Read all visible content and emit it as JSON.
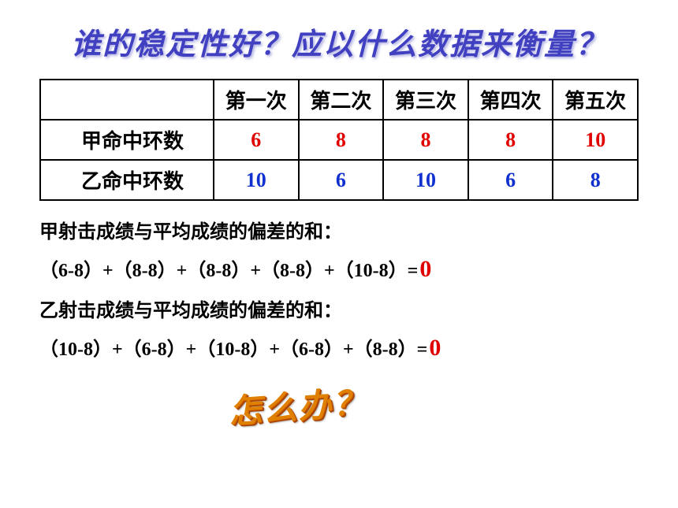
{
  "title": "谁的稳定性好？应以什么数据来衡量？",
  "table": {
    "headers": [
      "",
      "第一次",
      "第二次",
      "第三次",
      "第四次",
      "第五次"
    ],
    "rows": [
      {
        "label": "甲命中环数",
        "values": [
          "6",
          "8",
          "8",
          "8",
          "10"
        ],
        "value_color": "#e00000"
      },
      {
        "label": "乙命中环数",
        "values": [
          "10",
          "6",
          "10",
          "6",
          "8"
        ],
        "value_color": "#1030d0"
      }
    ],
    "border_color": "#000000",
    "header_fontsize": 26,
    "cell_fontsize": 26
  },
  "lines": {
    "a_label": "甲射击成绩与平均成绩的偏差的和：",
    "a_formula": "（6-8）+（8-8）+（8-8）+（8-8）+（10-8）=",
    "a_answer": "0",
    "b_label": "乙射击成绩与平均成绩的偏差的和：",
    "b_formula": "（10-8）+（6-8）+（10-8）+（6-8）+（8-8）=",
    "b_answer": "0"
  },
  "howto": "怎么办？",
  "colors": {
    "title_color": "#4040c0",
    "answer_color": "#e00000",
    "howto_color": "#e08000",
    "background": "#ffffff"
  },
  "typography": {
    "title_fontsize": 38,
    "body_fontsize": 24,
    "howto_fontsize": 42
  }
}
